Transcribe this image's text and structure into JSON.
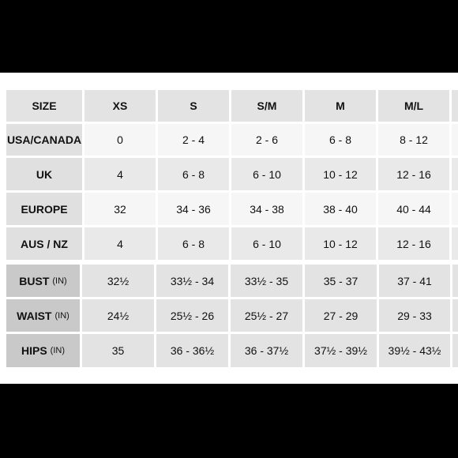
{
  "size_header": {
    "label": "SIZE",
    "sizes": [
      "XS",
      "S",
      "S/M",
      "M",
      "M/L"
    ]
  },
  "conversion_rows": [
    {
      "label": "USA/CANADA",
      "values": [
        "0",
        "2 - 4",
        "2 - 6",
        "6 - 8",
        "8 - 12"
      ]
    },
    {
      "label": "UK",
      "values": [
        "4",
        "6 - 8",
        "6 - 10",
        "10 - 12",
        "12 - 16"
      ]
    },
    {
      "label": "EUROPE",
      "values": [
        "32",
        "34 - 36",
        "34 - 38",
        "38 - 40",
        "40 - 44"
      ]
    },
    {
      "label": "AUS / NZ",
      "values": [
        "4",
        "6 - 8",
        "6 - 10",
        "10 - 12",
        "12 - 16"
      ]
    }
  ],
  "measurement_rows": [
    {
      "label": "BUST",
      "unit": "(IN)",
      "values": [
        "32½",
        "33½ - 34",
        "33½ - 35",
        "35 - 37",
        "37 - 41"
      ]
    },
    {
      "label": "WAIST",
      "unit": "(IN)",
      "values": [
        "24½",
        "25½ - 26",
        "25½ - 27",
        "27 - 29",
        "29 - 33"
      ]
    },
    {
      "label": "HIPS",
      "unit": "(IN)",
      "values": [
        "35",
        "36 - 36½",
        "36 - 37½",
        "37½ - 39½",
        "39½ - 43½"
      ]
    }
  ]
}
